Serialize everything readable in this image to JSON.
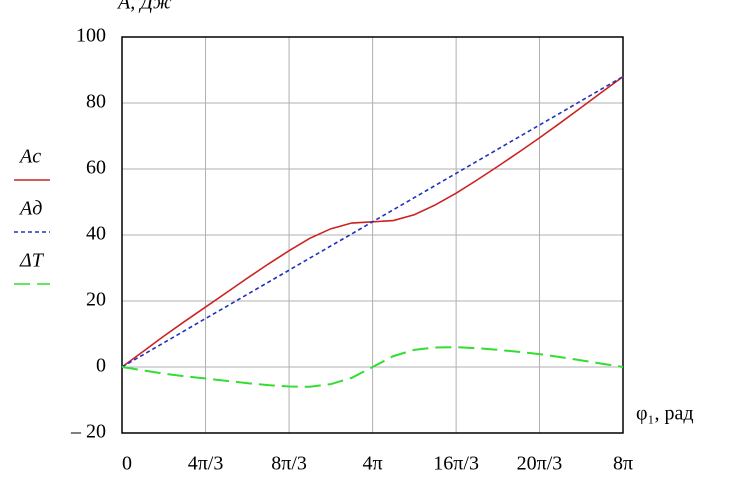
{
  "chart_data": {
    "type": "line",
    "y_label": "A, Дж",
    "x_label": "φ₁, рад",
    "x": [
      0,
      1.05,
      2.09,
      3.14,
      4.19,
      5.24,
      6.28,
      7.33,
      8.38,
      9.42,
      10.47,
      11.52,
      12.57,
      13.61,
      14.66,
      15.71,
      16.76,
      17.8,
      18.85,
      19.9,
      20.94,
      21.99,
      23.04,
      24.08,
      25.13
    ],
    "series": [
      {
        "name": "Aс",
        "color": "#cc2222",
        "dash": "solid",
        "values": [
          0,
          4.67,
          9.33,
          13.8,
          18.17,
          22.53,
          26.9,
          31.17,
          35.23,
          39,
          41.87,
          43.63,
          44,
          44.37,
          46.13,
          49.1,
          52.67,
          56.63,
          60.8,
          65.07,
          69.43,
          74,
          78.67,
          83.33,
          88
        ]
      },
      {
        "name": "Aд",
        "color": "#2233bb",
        "dash": "short",
        "values": [
          0,
          3.67,
          7.33,
          11,
          14.67,
          18.33,
          22,
          25.67,
          29.33,
          33,
          36.67,
          40.33,
          44,
          47.67,
          51.33,
          55,
          58.67,
          62.33,
          66,
          69.67,
          73.33,
          77,
          80.67,
          84.33,
          88
        ]
      },
      {
        "name": "ΔT",
        "color": "#33dd33",
        "dash": "long",
        "values": [
          0,
          -1.0,
          -2.0,
          -2.8,
          -3.5,
          -4.2,
          -4.9,
          -5.5,
          -5.9,
          -6.0,
          -5.2,
          -3.3,
          0,
          3.3,
          5.2,
          5.9,
          6.0,
          5.7,
          5.2,
          4.6,
          3.9,
          3.0,
          2.0,
          1.0,
          0
        ]
      }
    ],
    "xlim": [
      0,
      25.13
    ],
    "xticks": [
      0,
      {
        "value": 4.19,
        "label": "4π/3"
      },
      {
        "value": 8.38,
        "label": "8π/3"
      },
      {
        "value": 12.57,
        "label": "4π"
      },
      {
        "value": 16.76,
        "label": "16π/3"
      },
      {
        "value": 20.94,
        "label": "20π/3"
      },
      {
        "value": 25.13,
        "label": "8π"
      }
    ],
    "ylim": [
      -20,
      100
    ],
    "yticks": [
      {
        "value": -20,
        "label": "– 20"
      },
      0,
      20,
      40,
      60,
      80,
      100
    ],
    "grid": true
  }
}
